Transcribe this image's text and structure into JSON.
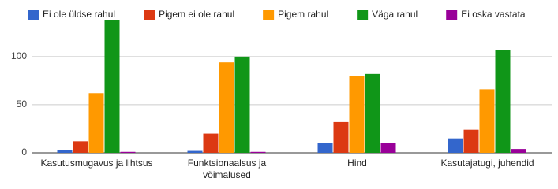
{
  "chart_data": {
    "type": "bar",
    "categories": [
      "Kasutusmugavus ja lihtsus",
      "Funktsionaalsus ja võimalused",
      "Hind",
      "Kasutajatugi, juhendid"
    ],
    "series": [
      {
        "name": "Ei ole üldse rahul",
        "color": "#3366cc",
        "values": [
          3,
          2,
          10,
          15
        ]
      },
      {
        "name": "Pigem ei ole rahul",
        "color": "#dc3912",
        "values": [
          12,
          20,
          32,
          24
        ]
      },
      {
        "name": "Pigem rahul",
        "color": "#ff9900",
        "values": [
          62,
          94,
          80,
          66
        ]
      },
      {
        "name": "Väga rahul",
        "color": "#109618",
        "values": [
          138,
          100,
          82,
          107
        ]
      },
      {
        "name": "Ei oska vastata",
        "color": "#990099",
        "values": [
          1,
          1,
          10,
          4
        ]
      }
    ],
    "ylim": [
      0,
      140
    ],
    "yticks": [
      0,
      50,
      100
    ],
    "grid": true,
    "legend": "top"
  }
}
